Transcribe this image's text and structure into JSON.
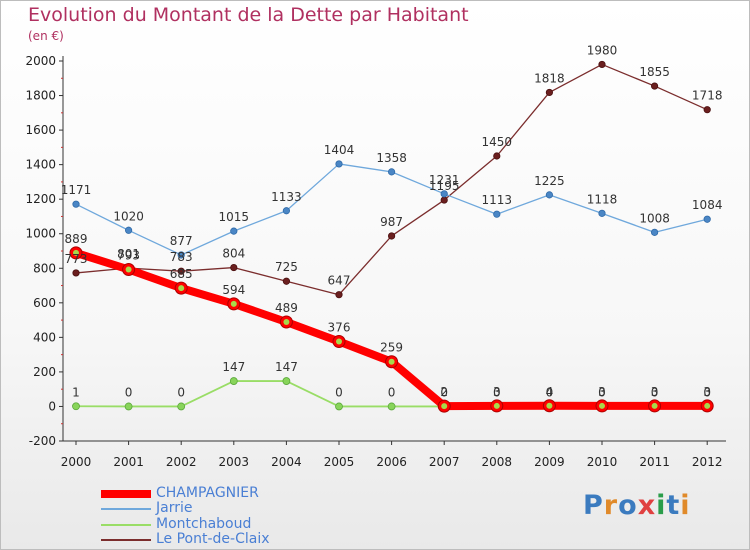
{
  "chart_data": {
    "type": "line",
    "title": "Evolution du Montant de la Dette par Habitant",
    "subtitle": "(en €)",
    "xlabel": "",
    "ylabel": "",
    "ylim": [
      -200,
      2000
    ],
    "yticks": [
      -200,
      0,
      200,
      400,
      600,
      800,
      1000,
      1200,
      1400,
      1600,
      1800,
      2000
    ],
    "x": [
      "2000",
      "2001",
      "2002",
      "2003",
      "2004",
      "2005",
      "2006",
      "2007",
      "2008",
      "2009",
      "2010",
      "2011",
      "2012"
    ],
    "grid": false,
    "legend": "bottom-left",
    "series": [
      {
        "name": "CHAMPAGNIER",
        "color": "#ff0000",
        "values": [
          889,
          793,
          685,
          594,
          489,
          376,
          259,
          2,
          3,
          4,
          3,
          3,
          3
        ]
      },
      {
        "name": "Jarrie",
        "color": "#6fa8dc",
        "values": [
          1171,
          1020,
          877,
          1015,
          1133,
          1404,
          1358,
          1231,
          1113,
          1225,
          1118,
          1008,
          1084
        ]
      },
      {
        "name": "Montchaboud",
        "color": "#99dd66",
        "values": [
          1,
          0,
          0,
          147,
          147,
          0,
          0,
          0,
          0,
          0,
          0,
          0,
          0
        ]
      },
      {
        "name": "Le Pont-de-Claix",
        "color": "#7b2d2d",
        "values": [
          773,
          801,
          783,
          804,
          725,
          647,
          987,
          1195,
          1450,
          1818,
          1980,
          1855,
          1718
        ]
      }
    ]
  },
  "logo": {
    "text": "Proxiti",
    "colors": [
      "#3b7bbf",
      "#e08a2a",
      "#3b7bbf",
      "#e04040",
      "#2a9d4a",
      "#3b7bbf",
      "#e08a2a"
    ]
  }
}
